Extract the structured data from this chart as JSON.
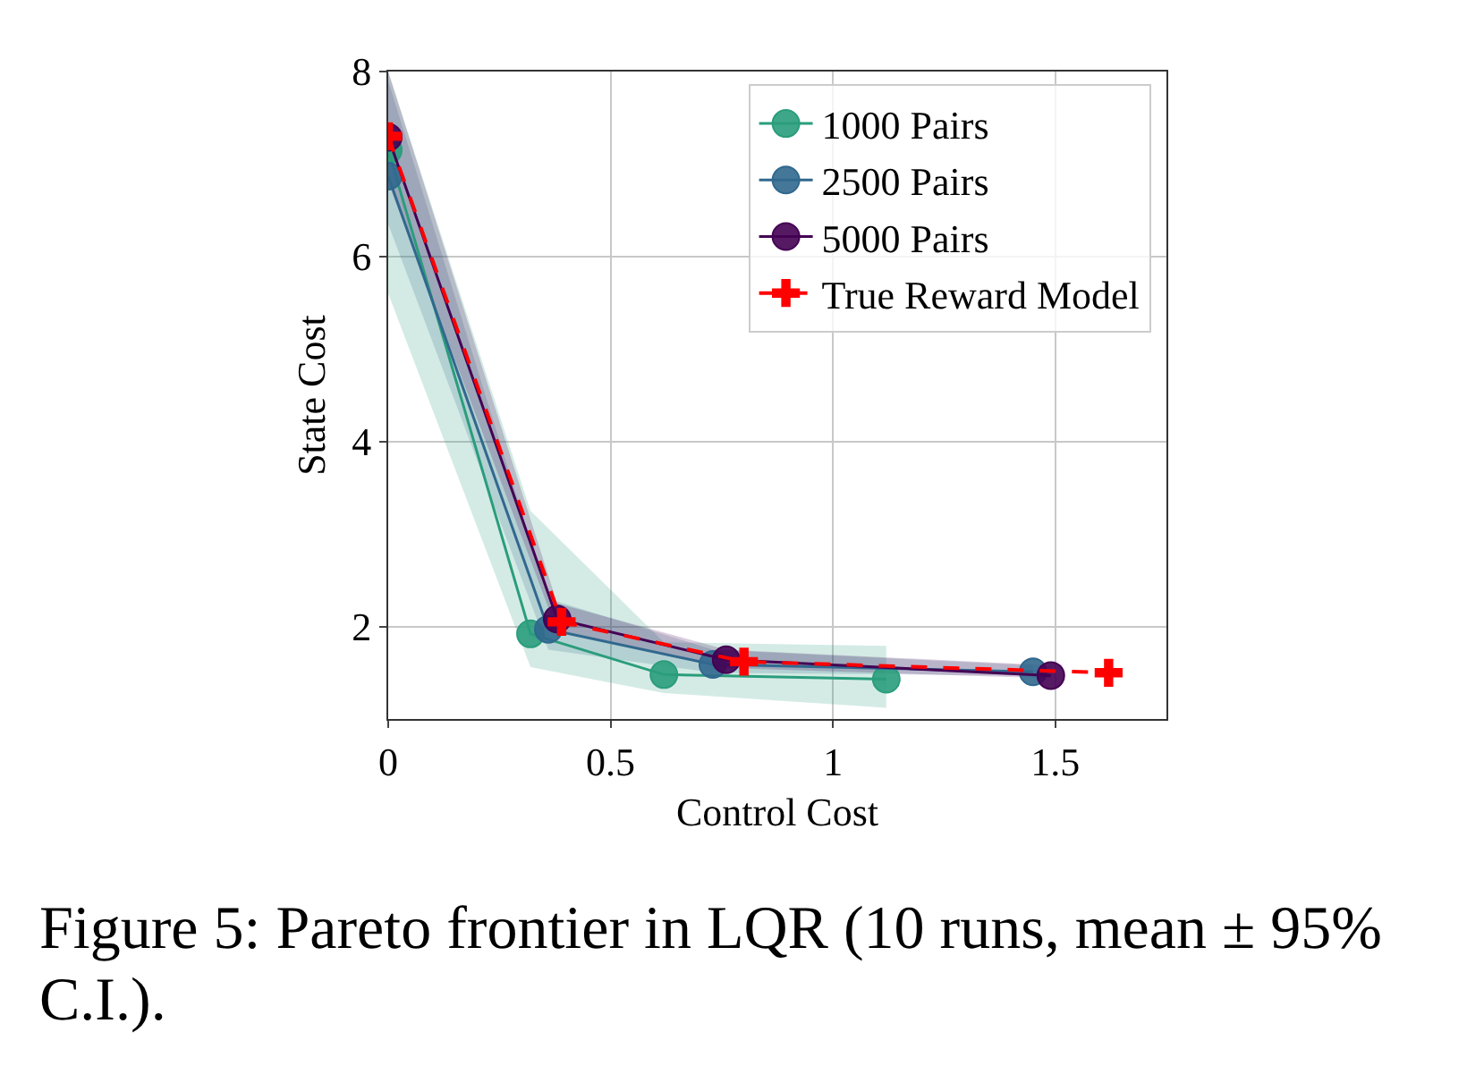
{
  "chart_data": {
    "type": "line",
    "xlabel": "Control Cost",
    "ylabel": "State Cost",
    "xlim": [
      0,
      1.75
    ],
    "ylim": [
      1,
      8
    ],
    "xticks": [
      0,
      0.5,
      1,
      1.5
    ],
    "yticks": [
      2,
      4,
      6,
      8
    ],
    "grid": true,
    "legend": "top right",
    "series": [
      {
        "name": "1000 Pairs",
        "color": "#2a9d7c",
        "marker": "circle",
        "line_style": "solid",
        "x": [
          0,
          0.32,
          0.62,
          1.12
        ],
        "values": [
          7.15,
          1.92,
          1.48,
          1.43
        ],
        "lower": [
          5.6,
          1.56,
          1.28,
          1.12
        ],
        "upper": [
          8.0,
          3.25,
          1.83,
          1.79
        ]
      },
      {
        "name": "2500 Pairs",
        "color": "#31688e",
        "marker": "circle",
        "line_style": "solid",
        "x": [
          0,
          0.36,
          0.73,
          1.45
        ],
        "values": [
          6.87,
          1.97,
          1.59,
          1.51
        ],
        "lower": [
          6.35,
          1.75,
          1.5,
          1.47
        ],
        "upper": [
          7.9,
          2.3,
          1.75,
          1.58
        ]
      },
      {
        "name": "5000 Pairs",
        "color": "#440154",
        "marker": "circle",
        "line_style": "solid",
        "x": [
          0,
          0.38,
          0.76,
          1.49
        ],
        "values": [
          7.29,
          2.08,
          1.64,
          1.47
        ],
        "lower": [
          6.8,
          1.95,
          1.55,
          1.44
        ],
        "upper": [
          8.0,
          2.25,
          1.75,
          1.58
        ]
      },
      {
        "name": "True Reward Model",
        "color": "#ff0000",
        "marker": "cross",
        "line_style": "dashed",
        "x": [
          0,
          0.39,
          0.8,
          1.62
        ],
        "values": [
          7.3,
          2.05,
          1.62,
          1.5
        ]
      }
    ],
    "annotations": [
      "Figure 5: Pareto frontier in LQR (10 runs, mean ± 95% C.I.)."
    ]
  }
}
